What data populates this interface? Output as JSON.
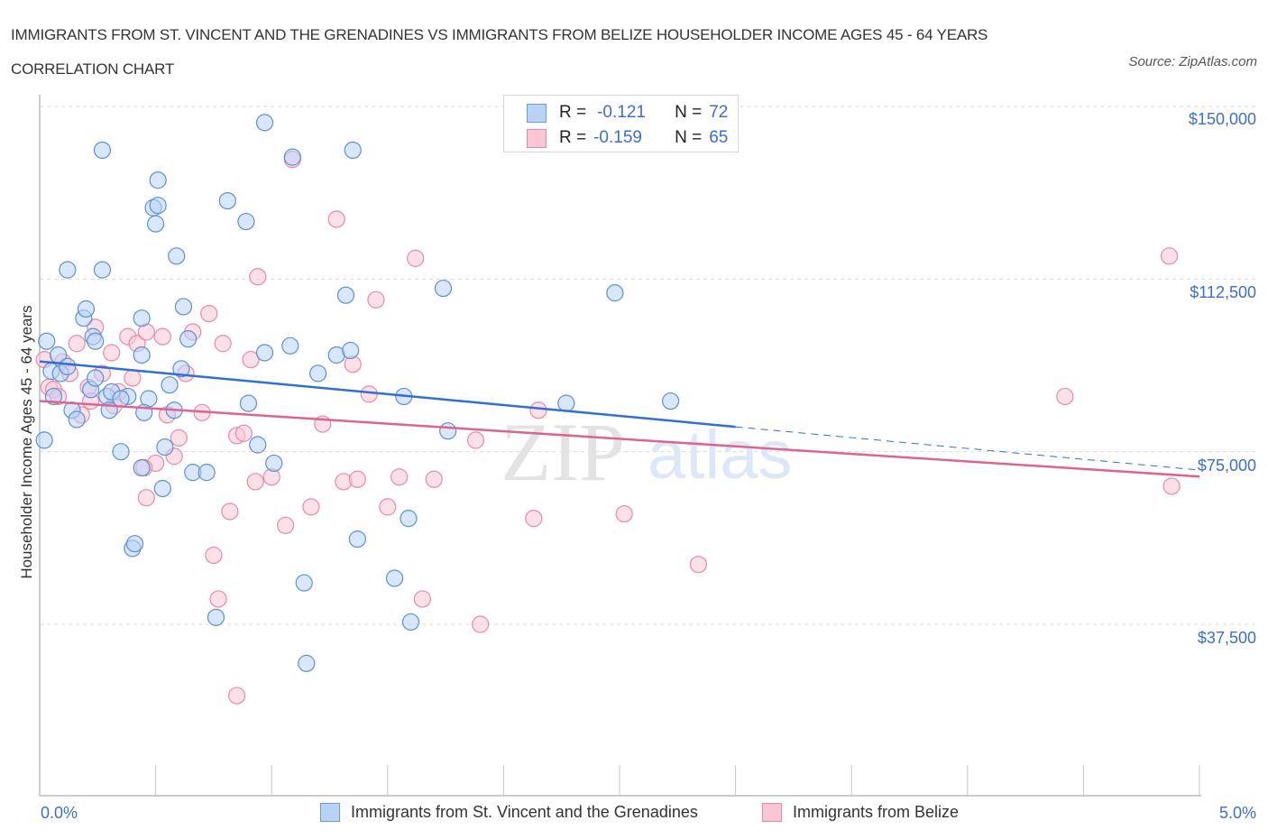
{
  "title": "IMMIGRANTS FROM ST. VINCENT AND THE GRENADINES VS IMMIGRANTS FROM BELIZE HOUSEHOLDER INCOME AGES 45 - 64 YEARS CORRELATION CHART",
  "source": "Source: ZipAtlas.com",
  "watermark": {
    "zip": "ZIP",
    "atlas": "atlas"
  },
  "colors": {
    "series1_fill": "#b9d3f5",
    "series1_stroke": "#5b8fd9",
    "series1_line": "#2f6fd6",
    "series2_fill": "#f9c6d6",
    "series2_stroke": "#e58aa8",
    "series2_line": "#e0638f",
    "axis_text": "#3a6fd1"
  },
  "legend": {
    "rows": [
      {
        "r_label": "R =",
        "r_value": "-0.121",
        "n_label": "N =",
        "n_value": "72"
      },
      {
        "r_label": "R =",
        "r_value": "-0.159",
        "n_label": "N =",
        "n_value": "65"
      }
    ]
  },
  "chart_data": {
    "type": "scatter",
    "title": "Immigrants from St. Vincent and the Grenadines vs Immigrants from Belize Householder Income Ages 45 - 64 years Correlation Chart",
    "xlabel": "",
    "ylabel": "Householder Income Ages 45 - 64 years",
    "xlim": [
      0,
      5
    ],
    "ylim": [
      0,
      150000
    ],
    "x_tick_labels": [
      "0.0%",
      "5.0%"
    ],
    "y_ticks": [
      37500,
      75000,
      112500,
      150000
    ],
    "y_tick_labels": [
      "$37,500",
      "$75,000",
      "$112,500",
      "$150,000"
    ],
    "grid": true,
    "legend_position": "top-center",
    "series": [
      {
        "name": "Immigrants from St. Vincent and the Grenadines",
        "R": -0.121,
        "N": 72,
        "trend": {
          "x": [
            0,
            3.0
          ],
          "y": [
            94600,
            80400
          ],
          "extended_dashed_to": {
            "x": 5.0,
            "y": 71000
          }
        },
        "points": [
          [
            0.02,
            77500
          ],
          [
            0.03,
            99000
          ],
          [
            0.05,
            92500
          ],
          [
            0.06,
            87000
          ],
          [
            0.08,
            96000
          ],
          [
            0.09,
            92000
          ],
          [
            0.12,
            93500
          ],
          [
            0.14,
            84000
          ],
          [
            0.16,
            82000
          ],
          [
            0.12,
            114500
          ],
          [
            0.19,
            104000
          ],
          [
            0.2,
            106000
          ],
          [
            0.22,
            88500
          ],
          [
            0.24,
            91000
          ],
          [
            0.27,
            114500
          ],
          [
            0.27,
            140500
          ],
          [
            0.23,
            100000
          ],
          [
            0.24,
            99000
          ],
          [
            0.29,
            87000
          ],
          [
            0.3,
            84000
          ],
          [
            0.31,
            88000
          ],
          [
            0.35,
            75000
          ],
          [
            0.38,
            87000
          ],
          [
            0.4,
            54000
          ],
          [
            0.41,
            55000
          ],
          [
            0.44,
            104000
          ],
          [
            0.44,
            96000
          ],
          [
            0.44,
            71500
          ],
          [
            0.47,
            86500
          ],
          [
            0.49,
            128000
          ],
          [
            0.5,
            124500
          ],
          [
            0.51,
            128500
          ],
          [
            0.51,
            134000
          ],
          [
            0.53,
            67000
          ],
          [
            0.54,
            76000
          ],
          [
            0.56,
            89500
          ],
          [
            0.58,
            84000
          ],
          [
            0.59,
            117500
          ],
          [
            0.61,
            93000
          ],
          [
            0.62,
            106500
          ],
          [
            0.64,
            99500
          ],
          [
            0.66,
            70500
          ],
          [
            0.72,
            70500
          ],
          [
            0.76,
            39000
          ],
          [
            0.81,
            129500
          ],
          [
            0.89,
            125000
          ],
          [
            0.9,
            85500
          ],
          [
            0.94,
            76500
          ],
          [
            0.97,
            96500
          ],
          [
            0.97,
            146500
          ],
          [
            1.01,
            72500
          ],
          [
            1.08,
            98000
          ],
          [
            1.09,
            139000
          ],
          [
            1.14,
            46500
          ],
          [
            1.2,
            92000
          ],
          [
            1.28,
            96000
          ],
          [
            1.32,
            109000
          ],
          [
            1.34,
            97000
          ],
          [
            1.35,
            140500
          ],
          [
            1.37,
            56000
          ],
          [
            1.53,
            47500
          ],
          [
            1.57,
            87000
          ],
          [
            1.59,
            60500
          ],
          [
            1.6,
            38000
          ],
          [
            1.74,
            110500
          ],
          [
            1.76,
            79500
          ],
          [
            2.27,
            85500
          ],
          [
            2.48,
            109500
          ],
          [
            2.72,
            86000
          ],
          [
            1.15,
            29000
          ],
          [
            0.35,
            86500
          ],
          [
            0.45,
            83500
          ]
        ]
      },
      {
        "name": "Immigrants from Belize",
        "R": -0.159,
        "N": 65,
        "trend": {
          "x": [
            0,
            5.0
          ],
          "y": [
            86000,
            69600
          ]
        },
        "points": [
          [
            0.02,
            95000
          ],
          [
            0.04,
            89000
          ],
          [
            0.06,
            88500
          ],
          [
            0.08,
            87000
          ],
          [
            0.1,
            94500
          ],
          [
            0.13,
            92000
          ],
          [
            0.16,
            98500
          ],
          [
            0.18,
            83000
          ],
          [
            0.21,
            89000
          ],
          [
            0.22,
            86000
          ],
          [
            0.24,
            102000
          ],
          [
            0.27,
            92000
          ],
          [
            0.31,
            96500
          ],
          [
            0.32,
            85000
          ],
          [
            0.34,
            88000
          ],
          [
            0.38,
            100000
          ],
          [
            0.4,
            91000
          ],
          [
            0.42,
            98500
          ],
          [
            0.46,
            101000
          ],
          [
            0.46,
            65000
          ],
          [
            0.5,
            72500
          ],
          [
            0.53,
            100000
          ],
          [
            0.55,
            83000
          ],
          [
            0.58,
            74000
          ],
          [
            0.6,
            78000
          ],
          [
            0.63,
            92000
          ],
          [
            0.66,
            101000
          ],
          [
            0.7,
            83500
          ],
          [
            0.73,
            105000
          ],
          [
            0.75,
            52500
          ],
          [
            0.77,
            43000
          ],
          [
            0.79,
            98500
          ],
          [
            0.82,
            62000
          ],
          [
            0.85,
            78500
          ],
          [
            0.88,
            79000
          ],
          [
            0.91,
            95000
          ],
          [
            0.93,
            68500
          ],
          [
            0.94,
            113000
          ],
          [
            1.0,
            69500
          ],
          [
            1.06,
            59000
          ],
          [
            1.09,
            138500
          ],
          [
            1.17,
            63000
          ],
          [
            1.22,
            81000
          ],
          [
            1.28,
            125500
          ],
          [
            1.31,
            68500
          ],
          [
            1.35,
            94000
          ],
          [
            1.37,
            69000
          ],
          [
            1.42,
            87500
          ],
          [
            1.45,
            108000
          ],
          [
            1.5,
            63000
          ],
          [
            1.55,
            69500
          ],
          [
            1.62,
            117000
          ],
          [
            1.65,
            43000
          ],
          [
            1.7,
            69000
          ],
          [
            1.88,
            77500
          ],
          [
            1.9,
            37500
          ],
          [
            2.15,
            84000
          ],
          [
            2.13,
            60500
          ],
          [
            2.52,
            61500
          ],
          [
            2.84,
            50500
          ],
          [
            4.42,
            87000
          ],
          [
            4.87,
            117500
          ],
          [
            4.88,
            67500
          ],
          [
            0.85,
            22000
          ],
          [
            0.45,
            71500
          ]
        ]
      }
    ]
  },
  "axis": {
    "ylabel": "Householder Income Ages 45 - 64 years",
    "x_left": "0.0%",
    "x_right": "5.0%",
    "y_labels": [
      "$150,000",
      "$112,500",
      "$75,000",
      "$37,500"
    ]
  },
  "bottom_legend": [
    "Immigrants from St. Vincent and the Grenadines",
    "Immigrants from Belize"
  ]
}
